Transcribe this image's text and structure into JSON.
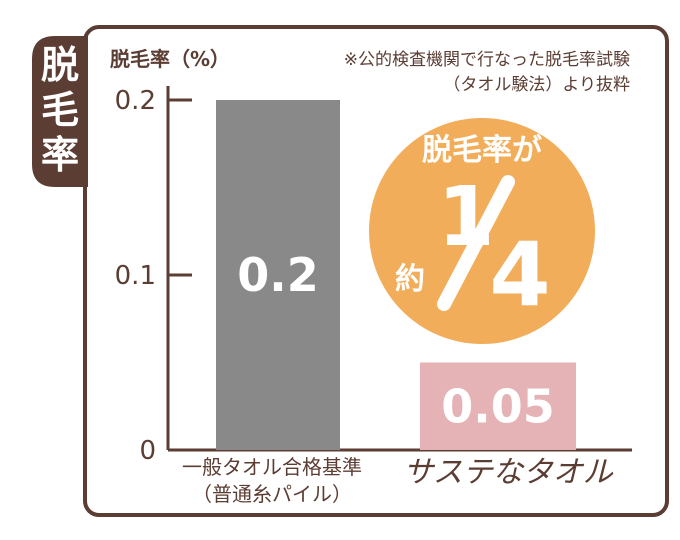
{
  "tab_label": "脱毛率",
  "chart_data": {
    "type": "bar",
    "ylabel": "脱毛率（%）",
    "note": [
      "※公的検査機関で行なった脱毛率試験",
      "（タオル験法）より抜粋"
    ],
    "yticks": [
      "0",
      "0.1",
      "0.2"
    ],
    "ylim": [
      0,
      0.2
    ],
    "categories": [
      {
        "lines": [
          "一般タオル合格基準",
          "（普通糸パイル）"
        ]
      },
      {
        "lines": [
          "サステなタオル"
        ]
      }
    ],
    "values": [
      0.2,
      0.05
    ],
    "value_labels": [
      "0.2",
      "0.05"
    ],
    "colors": {
      "frame": "#5b3d33",
      "bar1": "#898989",
      "bar2": "#e5b2b5",
      "badge": "#f2ad5a",
      "text": "#5b3d33"
    }
  },
  "badge": {
    "line1": "脱毛率が",
    "prefix": "約",
    "fraction": "1/4",
    "numerator": "1",
    "denominator": "4"
  }
}
